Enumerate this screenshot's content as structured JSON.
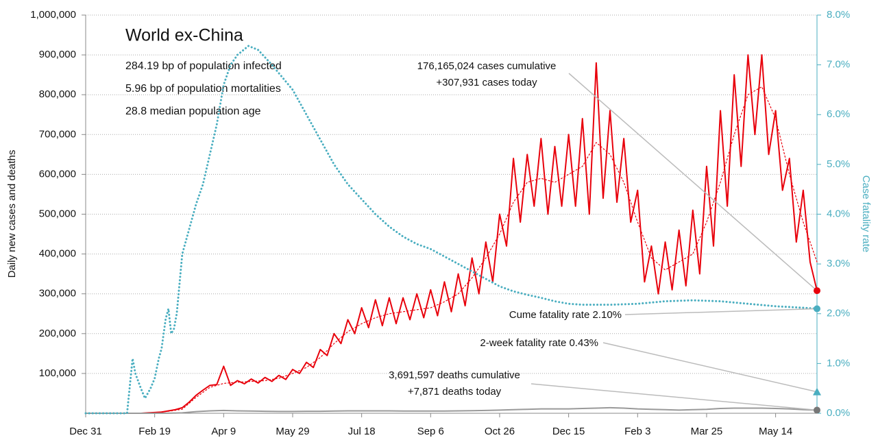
{
  "chart_data": {
    "type": "line",
    "title": "World ex-China",
    "stats": [
      "284.19 bp of population infected",
      "5.96 bp of population mortalities",
      "28.8 median population age"
    ],
    "ylabel": "Daily new cases and deaths",
    "y2label": "Case fatality rate",
    "xlim": [
      0,
      530
    ],
    "xticks": [
      {
        "value": 0,
        "label": "Dec 31"
      },
      {
        "value": 50,
        "label": "Feb 19"
      },
      {
        "value": 100,
        "label": "Apr 9"
      },
      {
        "value": 150,
        "label": "May 29"
      },
      {
        "value": 200,
        "label": "Jul 18"
      },
      {
        "value": 250,
        "label": "Sep 6"
      },
      {
        "value": 300,
        "label": "Oct 26"
      },
      {
        "value": 350,
        "label": "Dec 15"
      },
      {
        "value": 400,
        "label": "Feb 3"
      },
      {
        "value": 450,
        "label": "Mar 25"
      },
      {
        "value": 500,
        "label": "May 14"
      }
    ],
    "ylim": [
      0,
      1000000
    ],
    "yticks": [
      {
        "value": 100000,
        "label": "100,000"
      },
      {
        "value": 200000,
        "label": "200,000"
      },
      {
        "value": 300000,
        "label": "300,000"
      },
      {
        "value": 400000,
        "label": "400,000"
      },
      {
        "value": 500000,
        "label": "500,000"
      },
      {
        "value": 600000,
        "label": "600,000"
      },
      {
        "value": 700000,
        "label": "700,000"
      },
      {
        "value": 800000,
        "label": "800,000"
      },
      {
        "value": 900000,
        "label": "900,000"
      },
      {
        "value": 1000000,
        "label": "1,000,000"
      }
    ],
    "y2lim": [
      0,
      8
    ],
    "y2ticks": [
      {
        "value": 0,
        "label": "0.0%"
      },
      {
        "value": 1,
        "label": "1.0%"
      },
      {
        "value": 2,
        "label": "2.0%"
      },
      {
        "value": 3,
        "label": "3.0%"
      },
      {
        "value": 4,
        "label": "4.0%"
      },
      {
        "value": 5,
        "label": "5.0%"
      },
      {
        "value": 6,
        "label": "6.0%"
      },
      {
        "value": 7,
        "label": "7.0%"
      },
      {
        "value": 8,
        "label": "8.0%"
      }
    ],
    "grid": true,
    "series": [
      {
        "color": "#e8000b",
        "width": 2,
        "dash": "solid",
        "x": [
          0,
          5,
          10,
          15,
          20,
          25,
          30,
          35,
          40,
          45,
          50,
          55,
          60,
          65,
          70,
          75,
          80,
          85,
          90,
          95,
          100,
          105,
          110,
          115,
          120,
          125,
          130,
          135,
          140,
          145,
          150,
          155,
          160,
          165,
          170,
          175,
          180,
          185,
          190,
          195,
          200,
          205,
          210,
          215,
          220,
          225,
          230,
          235,
          240,
          245,
          250,
          255,
          260,
          265,
          270,
          275,
          280,
          285,
          290,
          295,
          300,
          305,
          310,
          315,
          320,
          325,
          330,
          335,
          340,
          345,
          350,
          355,
          360,
          365,
          370,
          375,
          380,
          385,
          390,
          395,
          400,
          405,
          410,
          415,
          420,
          425,
          430,
          435,
          440,
          445,
          450,
          455,
          460,
          465,
          470,
          475,
          480,
          485,
          490,
          495,
          500,
          505,
          510,
          515,
          520,
          525,
          530
        ],
        "values": [
          0,
          0,
          0,
          0,
          0,
          0,
          0,
          0,
          0,
          1000,
          2000,
          3000,
          6000,
          9000,
          14000,
          28000,
          45000,
          58000,
          70000,
          72000,
          118000,
          70000,
          82000,
          74000,
          86000,
          76000,
          90000,
          80000,
          95000,
          85000,
          110000,
          100000,
          128000,
          115000,
          160000,
          145000,
          200000,
          175000,
          235000,
          200000,
          265000,
          215000,
          285000,
          220000,
          290000,
          225000,
          290000,
          235000,
          300000,
          240000,
          310000,
          245000,
          330000,
          255000,
          350000,
          270000,
          390000,
          300000,
          430000,
          330000,
          500000,
          420000,
          640000,
          480000,
          650000,
          520000,
          690000,
          500000,
          670000,
          520000,
          700000,
          520000,
          740000,
          500000,
          880000,
          540000,
          760000,
          530000,
          690000,
          480000,
          560000,
          330000,
          420000,
          300000,
          430000,
          310000,
          460000,
          320000,
          510000,
          350000,
          620000,
          420000,
          760000,
          520000,
          850000,
          620000,
          900000,
          700000,
          900000,
          650000,
          760000,
          560000,
          640000,
          430000,
          560000,
          380000,
          307931
        ]
      },
      {
        "color": "#e8000b",
        "width": 1.2,
        "dash": "dotted",
        "x": [
          0,
          10,
          20,
          30,
          40,
          50,
          60,
          70,
          80,
          90,
          100,
          110,
          120,
          130,
          140,
          150,
          160,
          170,
          180,
          190,
          200,
          210,
          220,
          230,
          240,
          250,
          260,
          270,
          280,
          290,
          300,
          310,
          320,
          330,
          340,
          350,
          360,
          370,
          380,
          390,
          400,
          410,
          420,
          430,
          440,
          450,
          460,
          470,
          480,
          490,
          500,
          510,
          520,
          530
        ],
        "values": [
          0,
          0,
          0,
          0,
          0,
          2000,
          5000,
          10000,
          40000,
          65000,
          75000,
          78000,
          80000,
          82000,
          88000,
          100000,
          115000,
          140000,
          175000,
          205000,
          225000,
          240000,
          250000,
          255000,
          260000,
          265000,
          280000,
          300000,
          340000,
          390000,
          450000,
          530000,
          580000,
          590000,
          580000,
          600000,
          620000,
          680000,
          650000,
          580000,
          480000,
          390000,
          360000,
          380000,
          400000,
          480000,
          580000,
          700000,
          800000,
          820000,
          740000,
          600000,
          480000,
          380000
        ]
      },
      {
        "color": "#999999",
        "width": 2,
        "dash": "solid",
        "x": [
          0,
          10,
          20,
          30,
          40,
          50,
          60,
          70,
          80,
          90,
          100,
          110,
          120,
          130,
          140,
          150,
          160,
          170,
          180,
          190,
          200,
          210,
          220,
          230,
          240,
          250,
          260,
          270,
          280,
          290,
          300,
          310,
          320,
          330,
          340,
          350,
          360,
          370,
          380,
          390,
          400,
          410,
          420,
          430,
          440,
          450,
          460,
          470,
          480,
          490,
          500,
          510,
          520,
          530
        ],
        "values": [
          0,
          0,
          0,
          0,
          0,
          0,
          200,
          1000,
          4000,
          6000,
          7000,
          6000,
          5500,
          5000,
          4500,
          4500,
          5000,
          5000,
          5500,
          6000,
          6000,
          6000,
          6000,
          5500,
          5500,
          5500,
          5500,
          6000,
          6500,
          7000,
          8000,
          9000,
          10000,
          11000,
          11000,
          11000,
          12000,
          13000,
          14000,
          13000,
          11000,
          10000,
          9000,
          8000,
          9000,
          10000,
          12000,
          13000,
          13000,
          13000,
          12000,
          11000,
          9000,
          7871
        ]
      },
      {
        "color": "#4aaec0",
        "width": 3,
        "dash": "dotted",
        "axis": "y2",
        "x": [
          0,
          30,
          34,
          36,
          40,
          43,
          47,
          50,
          53,
          55,
          58,
          60,
          62,
          64,
          66,
          70,
          75,
          80,
          85,
          90,
          95,
          100,
          105,
          110,
          118,
          125,
          135,
          150,
          160,
          170,
          180,
          190,
          200,
          210,
          220,
          230,
          240,
          250,
          260,
          270,
          280,
          290,
          300,
          310,
          320,
          330,
          340,
          350,
          360,
          380,
          400,
          420,
          440,
          460,
          480,
          500,
          520,
          530
        ],
        "values": [
          0,
          0,
          1.1,
          0.8,
          0.5,
          0.3,
          0.5,
          0.7,
          1.1,
          1.3,
          1.9,
          2.1,
          1.6,
          1.7,
          2.0,
          3.2,
          3.7,
          4.2,
          4.6,
          5.2,
          5.8,
          6.6,
          7.0,
          7.2,
          7.38,
          7.3,
          7.0,
          6.5,
          6.0,
          5.5,
          5.0,
          4.6,
          4.3,
          4.0,
          3.75,
          3.55,
          3.4,
          3.3,
          3.15,
          3.0,
          2.85,
          2.7,
          2.55,
          2.45,
          2.38,
          2.32,
          2.25,
          2.2,
          2.18,
          2.18,
          2.2,
          2.25,
          2.27,
          2.25,
          2.2,
          2.15,
          2.12,
          2.1
        ]
      }
    ],
    "annotations": [
      {
        "lines": [
          "176,165,024 cases cumulative",
          "+307,931 cases today"
        ],
        "value": 307931,
        "color": "#e8000b",
        "marker": "circle"
      },
      {
        "lines": [
          "Cume fatality rate 2.10%"
        ],
        "value": 2.1,
        "axis": "y2",
        "color": "#4aaec0",
        "marker": "circle"
      },
      {
        "lines": [
          "2-week fatality rate 0.43%"
        ],
        "value": 0.43,
        "axis": "y2",
        "color": "#4aaec0",
        "marker": "triangle"
      },
      {
        "lines": [
          "3,691,597 deaths cumulative",
          "+7,871 deaths today"
        ],
        "value": 7871,
        "color": "#777777",
        "marker": "circle"
      }
    ]
  }
}
